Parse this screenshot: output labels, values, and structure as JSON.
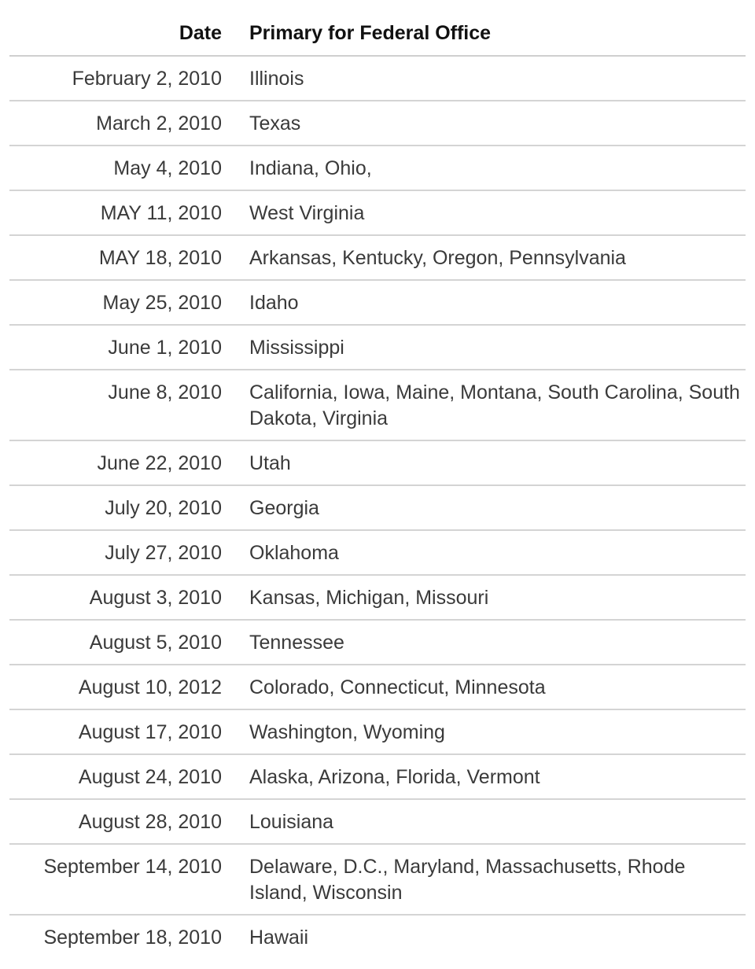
{
  "table": {
    "headers": {
      "date": "Date",
      "primary": "Primary for Federal Office"
    },
    "rows": [
      {
        "date": "February 2, 2010",
        "states": "Illinois"
      },
      {
        "date": "March 2, 2010",
        "states": "Texas"
      },
      {
        "date": "May 4, 2010",
        "states": "Indiana, Ohio,"
      },
      {
        "date": "MAY 11, 2010",
        "states": "West Virginia"
      },
      {
        "date": "MAY 18, 2010",
        "states": "Arkansas, Kentucky, Oregon, Pennsylvania"
      },
      {
        "date": "May 25, 2010",
        "states": "Idaho"
      },
      {
        "date": "June 1, 2010",
        "states": "Mississippi"
      },
      {
        "date": "June 8, 2010",
        "states": "California, Iowa, Maine, Montana, South Carolina, South Dakota, Virginia"
      },
      {
        "date": "June 22, 2010",
        "states": "Utah"
      },
      {
        "date": "July 20, 2010",
        "states": "Georgia"
      },
      {
        "date": "July 27, 2010",
        "states": "Oklahoma"
      },
      {
        "date": "August 3, 2010",
        "states": "Kansas, Michigan, Missouri"
      },
      {
        "date": "August 5, 2010",
        "states": "Tennessee"
      },
      {
        "date": "August 10, 2012",
        "states": "Colorado, Connecticut, Minnesota"
      },
      {
        "date": "August 17, 2010",
        "states": "Washington, Wyoming"
      },
      {
        "date": "August 24, 2010",
        "states": "Alaska, Arizona, Florida, Vermont"
      },
      {
        "date": "August 28, 2010",
        "states": "Louisiana"
      },
      {
        "date": "September 14, 2010",
        "states": "Delaware, D.C., Maryland, Massachusetts, Rhode Island, Wisconsin"
      },
      {
        "date": "September 18, 2010",
        "states": "Hawaii"
      }
    ]
  }
}
